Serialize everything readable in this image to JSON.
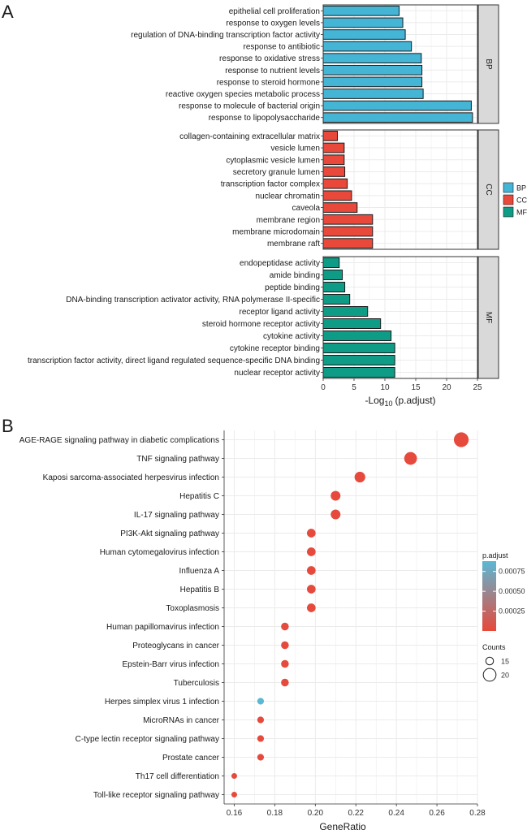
{
  "chart_data": [
    {
      "panel_label": "A",
      "type": "bar",
      "orientation": "horizontal",
      "xlabel_parts": [
        "-Log",
        "10",
        "(p.adjust)"
      ],
      "xlim": [
        0,
        25
      ],
      "xticks": [
        "0",
        "5",
        "10",
        "15",
        "20",
        "25"
      ],
      "grid": true,
      "legend": {
        "position": "right",
        "entries": [
          {
            "key": "BP",
            "label": "BP",
            "color": "#45B5D6"
          },
          {
            "key": "CC",
            "label": "CC",
            "color": "#E8493A"
          },
          {
            "key": "MF",
            "label": "MF",
            "color": "#0E9C86"
          }
        ]
      },
      "facets": [
        {
          "name": "BP",
          "color": "#45B5D6",
          "categories": [
            "epithelial cell proliferation",
            "response to oxygen levels",
            "regulation of DNA-binding transcription factor activity",
            "response to antibiotic",
            "response to oxidative stress",
            "response to nutrient levels",
            "response to steroid hormone",
            "reactive oxygen species metabolic process",
            "response to molecule of bacterial origin",
            "response to lipopolysaccharide"
          ],
          "values": [
            12.3,
            12.9,
            13.3,
            14.3,
            15.9,
            16.0,
            16.0,
            16.2,
            24.0,
            24.2
          ]
        },
        {
          "name": "CC",
          "color": "#E8493A",
          "categories": [
            "collagen-containing extracellular matrix",
            "vesicle lumen",
            "cytoplasmic vesicle lumen",
            "secretory granule lumen",
            "transcription factor complex",
            "nuclear chromatin",
            "caveola",
            "membrane region",
            "membrane microdomain",
            "membrane raft"
          ],
          "values": [
            2.3,
            3.4,
            3.4,
            3.5,
            3.9,
            4.6,
            5.5,
            8.0,
            8.0,
            8.0
          ]
        },
        {
          "name": "MF",
          "color": "#0E9C86",
          "categories": [
            "endopeptidase activity",
            "amide binding",
            "peptide binding",
            "DNA-binding transcription activator activity, RNA polymerase II-specific",
            "receptor ligand activity",
            "steroid hormone receptor activity",
            "cytokine activity",
            "cytokine receptor binding",
            "transcription factor activity, direct ligand regulated sequence-specific DNA binding",
            "nuclear receptor activity"
          ],
          "values": [
            2.6,
            3.1,
            3.5,
            4.3,
            7.2,
            9.3,
            11.0,
            11.6,
            11.6,
            11.6
          ]
        }
      ]
    },
    {
      "panel_label": "B",
      "type": "scatter",
      "xlabel": "GeneRatio",
      "ylabel": "",
      "xlim": [
        0.155,
        0.28
      ],
      "xticks": [
        "0.16",
        "0.18",
        "0.20",
        "0.22",
        "0.24",
        "0.26",
        "0.28"
      ],
      "grid": true,
      "categories": [
        "AGE-RAGE signaling pathway in diabetic complications",
        "TNF signaling pathway",
        "Kaposi sarcoma-associated herpesvirus infection",
        "Hepatitis C",
        "IL-17 signaling pathway",
        "PI3K-Akt signaling pathway",
        "Human cytomegalovirus infection",
        "Influenza A",
        "Hepatitis B",
        "Toxoplasmosis",
        "Human papillomavirus infection",
        "Proteoglycans in cancer",
        "Epstein-Barr virus infection",
        "Tuberculosis",
        "Herpes simplex virus 1 infection",
        "MicroRNAs in cancer",
        "C-type lectin receptor signaling pathway",
        "Prostate cancer",
        "Th17 cell differentiation",
        "Toll-like receptor signaling pathway"
      ],
      "x": [
        0.272,
        0.247,
        0.222,
        0.21,
        0.21,
        0.198,
        0.198,
        0.198,
        0.198,
        0.198,
        0.185,
        0.185,
        0.185,
        0.185,
        0.173,
        0.173,
        0.173,
        0.173,
        0.16,
        0.16
      ],
      "counts": [
        22,
        20,
        18,
        17,
        17,
        16,
        16,
        16,
        16,
        16,
        15,
        15,
        15,
        15,
        14,
        14,
        14,
        14,
        13,
        13
      ],
      "p_adjust": [
        1e-05,
        1e-05,
        1e-05,
        1e-05,
        1e-05,
        1e-05,
        1e-05,
        1e-05,
        1e-05,
        1e-05,
        1e-05,
        1e-05,
        1e-05,
        1e-05,
        0.00088,
        1e-05,
        1e-05,
        1e-05,
        1e-05,
        1e-05
      ],
      "color_legend": {
        "title": "p.adjust",
        "low_color": "#E8493A",
        "high_color": "#5BB8D4",
        "range": [
          0,
          0.00088
        ],
        "ticks": [
          {
            "value": 0.00075,
            "label": "0.00075"
          },
          {
            "value": 0.0005,
            "label": "0.00050"
          },
          {
            "value": 0.00025,
            "label": "0.00025"
          }
        ]
      },
      "size_legend": {
        "title": "Counts",
        "entries": [
          {
            "value": 15,
            "label": "15"
          },
          {
            "value": 20,
            "label": "20"
          }
        ]
      }
    }
  ]
}
